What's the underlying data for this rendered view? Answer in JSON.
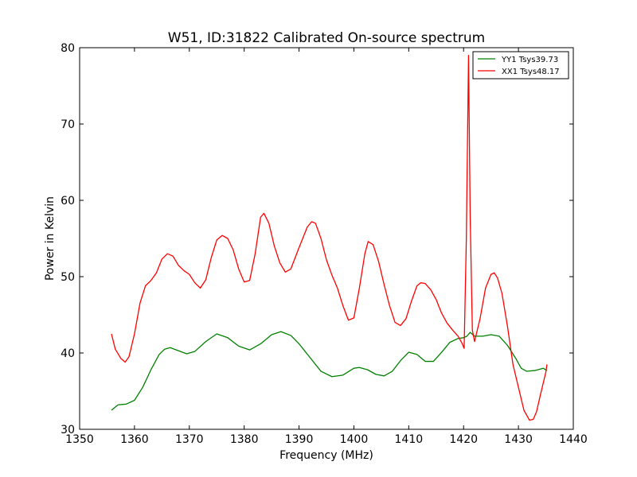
{
  "chart_data": {
    "type": "line",
    "title": "W51, ID:31822 Calibrated On-source spectrum",
    "xlabel": "Frequency (MHz)",
    "ylabel": "Power in Kelvin",
    "xlim": [
      1350,
      1440
    ],
    "ylim": [
      30,
      80
    ],
    "xticks": [
      1350,
      1360,
      1370,
      1380,
      1390,
      1400,
      1410,
      1420,
      1430,
      1440
    ],
    "yticks": [
      30,
      40,
      50,
      60,
      70,
      80
    ],
    "grid": false,
    "legend_position": "top-right",
    "series": [
      {
        "name": "YY1 Tsys39.73",
        "color": "#008000",
        "x": [
          1355.8,
          1357,
          1358.5,
          1360,
          1361.5,
          1363,
          1364.5,
          1365.5,
          1366.5,
          1368,
          1369.5,
          1371,
          1373,
          1375,
          1377,
          1379,
          1381,
          1383,
          1385,
          1386.7,
          1388.5,
          1390,
          1392,
          1394,
          1396,
          1398,
          1400,
          1401,
          1402.5,
          1404,
          1405.5,
          1407,
          1408.5,
          1410,
          1411.5,
          1413,
          1414.5,
          1416,
          1417.5,
          1419,
          1420,
          1420.6,
          1421.2,
          1422,
          1423.5,
          1425,
          1426.5,
          1428,
          1429.5,
          1430.5,
          1431.5,
          1433,
          1434.5,
          1435.2
        ],
        "y": [
          32.5,
          33.2,
          33.3,
          33.8,
          35.5,
          37.8,
          39.8,
          40.5,
          40.7,
          40.3,
          39.9,
          40.2,
          41.5,
          42.5,
          42.0,
          40.9,
          40.4,
          41.2,
          42.4,
          42.8,
          42.3,
          41.2,
          39.4,
          37.6,
          36.9,
          37.1,
          38.0,
          38.1,
          37.8,
          37.2,
          37.0,
          37.6,
          39.0,
          40.1,
          39.8,
          38.9,
          38.9,
          40.1,
          41.4,
          41.9,
          42.0,
          42.2,
          42.7,
          42.2,
          42.2,
          42.4,
          42.2,
          41.0,
          39.3,
          38.0,
          37.6,
          37.7,
          38.0,
          37.7
        ]
      },
      {
        "name": "XX1 Tsys48.17",
        "color": "#ff0000",
        "x": [
          1355.8,
          1356.5,
          1357.5,
          1358.3,
          1359,
          1360,
          1361,
          1362,
          1363,
          1364,
          1365,
          1366,
          1367,
          1368,
          1369,
          1370,
          1371,
          1372,
          1373,
          1374,
          1375,
          1376,
          1377,
          1378,
          1379,
          1380,
          1381,
          1382,
          1383,
          1383.6,
          1384.5,
          1385.5,
          1386.5,
          1387.5,
          1388.5,
          1390,
          1391.5,
          1392.3,
          1393,
          1394,
          1395,
          1396,
          1397,
          1398,
          1399,
          1400,
          1401,
          1402,
          1402.6,
          1403.5,
          1404.5,
          1405.5,
          1406.5,
          1407.5,
          1408.5,
          1409.5,
          1410.5,
          1411.5,
          1412.2,
          1413,
          1414,
          1415,
          1416,
          1417,
          1418,
          1419,
          1419.7,
          1420.1,
          1420.5,
          1420.9,
          1421.2,
          1421.6,
          1422,
          1423,
          1424,
          1425,
          1425.6,
          1426.2,
          1427,
          1428,
          1429,
          1430,
          1431,
          1432,
          1432.7,
          1433.3,
          1434,
          1435,
          1435.2
        ],
        "y": [
          42.5,
          40.5,
          39.3,
          38.8,
          39.5,
          42.5,
          46.5,
          48.8,
          49.5,
          50.5,
          52.3,
          53.0,
          52.7,
          51.5,
          50.8,
          50.3,
          49.2,
          48.5,
          49.6,
          52.5,
          54.8,
          55.4,
          55.0,
          53.5,
          51.0,
          49.3,
          49.5,
          53.0,
          57.8,
          58.3,
          57.0,
          54.0,
          51.8,
          50.6,
          51.0,
          53.8,
          56.5,
          57.2,
          57.0,
          55.0,
          52.2,
          50.2,
          48.5,
          46.2,
          44.3,
          44.6,
          48.5,
          53.0,
          54.6,
          54.2,
          52.0,
          49.0,
          46.2,
          44.0,
          43.6,
          44.5,
          46.8,
          48.8,
          49.2,
          49.1,
          48.3,
          47.0,
          45.2,
          43.9,
          43.0,
          42.2,
          41.3,
          40.6,
          55.0,
          79.0,
          58.0,
          43.0,
          41.5,
          44.5,
          48.5,
          50.3,
          50.5,
          49.8,
          47.8,
          43.5,
          38.5,
          35.5,
          32.5,
          31.2,
          31.3,
          32.3,
          34.5,
          37.5,
          38.5
        ]
      }
    ]
  }
}
